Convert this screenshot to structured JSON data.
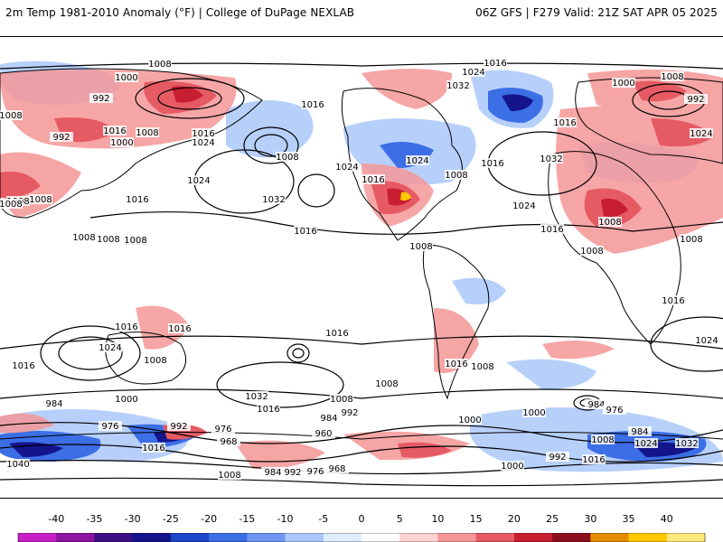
{
  "header": {
    "title": "2m Temp 1981-2010 Anomaly (°F) | College of DuPage NEXLAB",
    "run_info": "06Z GFS | F279 Valid: 21Z SAT APR 05 2025"
  },
  "map": {
    "isobar_labels": [
      "1008",
      "1016",
      "1000",
      "1024",
      "992",
      "1032",
      "1016",
      "1008",
      "992",
      "1008",
      "1000",
      "1016",
      "1008",
      "1024",
      "1008",
      "1016",
      "1032",
      "1008",
      "1024",
      "1016",
      "1032",
      "1024",
      "1016",
      "1008",
      "1024",
      "1000",
      "1008",
      "1008",
      "1016",
      "1008",
      "992",
      "1016",
      "1024",
      "1016",
      "1008",
      "1024",
      "1008",
      "1008",
      "1008",
      "1016",
      "1008",
      "1008",
      "1016",
      "1016",
      "1008",
      "1016",
      "1024",
      "1016",
      "1024",
      "1016",
      "1008",
      "1000",
      "1032",
      "1016",
      "1008",
      "1008",
      "1000",
      "984",
      "992",
      "984",
      "1008",
      "960",
      "976",
      "968",
      "992",
      "976",
      "1016",
      "1040",
      "1008",
      "984",
      "992",
      "976",
      "968",
      "1000",
      "992",
      "1016",
      "1008",
      "1024",
      "1032",
      "984",
      "976",
      "984",
      "1000",
      "1016"
    ]
  },
  "colorbar": {
    "ticks": [
      "-40",
      "-35",
      "-30",
      "-25",
      "-20",
      "-15",
      "-10",
      "-5",
      "0",
      "5",
      "10",
      "15",
      "20",
      "25",
      "30",
      "35",
      "40"
    ],
    "colors": [
      "#c81ec8",
      "#8c14a0",
      "#3c0f82",
      "#14148c",
      "#1e46c8",
      "#3c6ee6",
      "#6e96f0",
      "#aac8fa",
      "#dceeff",
      "#ffffff",
      "#ffd2d2",
      "#f59696",
      "#e65a64",
      "#c81e32",
      "#8c0f1e",
      "#e68c00",
      "#ffc800",
      "#ffe87a"
    ]
  }
}
